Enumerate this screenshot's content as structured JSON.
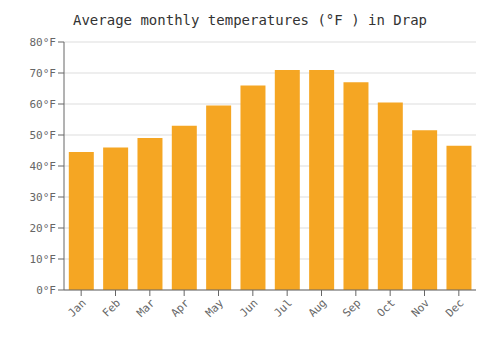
{
  "chart_data": {
    "type": "bar",
    "title": "Average monthly temperatures (°F ) in Drap",
    "categories": [
      "Jan",
      "Feb",
      "Mar",
      "Apr",
      "May",
      "Jun",
      "Jul",
      "Aug",
      "Sep",
      "Oct",
      "Nov",
      "Dec"
    ],
    "values": [
      44.5,
      46.0,
      49.0,
      53.0,
      59.5,
      66.0,
      71.0,
      71.0,
      67.0,
      60.5,
      51.5,
      46.5
    ],
    "color": "#F5A623",
    "ylim": [
      0,
      80
    ],
    "yticks": [
      {
        "value": 0,
        "label": "0°F"
      },
      {
        "value": 10,
        "label": "10°F"
      },
      {
        "value": 20,
        "label": "20°F"
      },
      {
        "value": 30,
        "label": "30°F"
      },
      {
        "value": 40,
        "label": "40°F"
      },
      {
        "value": 50,
        "label": "50°F"
      },
      {
        "value": 60,
        "label": "60°F"
      },
      {
        "value": 70,
        "label": "70°F"
      },
      {
        "value": 80,
        "label": "80°F"
      }
    ],
    "grid": true
  }
}
